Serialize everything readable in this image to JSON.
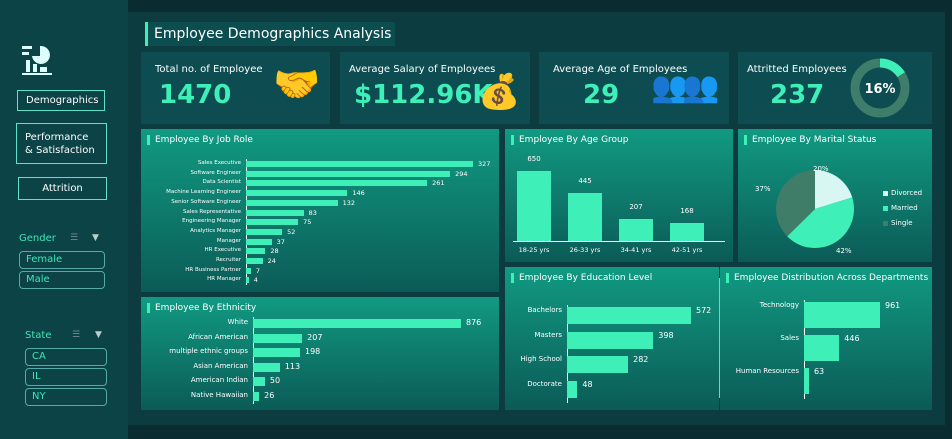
{
  "title": "Employee Demographics Analysis",
  "nav": {
    "demographics": "Demographics",
    "performance_line1": "Performance",
    "performance_line2": "& Satisfaction",
    "attrition": "Attrition"
  },
  "slicers": {
    "gender": {
      "title": "Gender",
      "items": [
        "Female",
        "Male"
      ]
    },
    "state": {
      "title": "State",
      "items": [
        "CA",
        "IL",
        "NY"
      ]
    }
  },
  "kpis": {
    "total": {
      "label": "Total no. of Employee",
      "value": "1470"
    },
    "salary": {
      "label": "Average Salary of Employees",
      "value": "$112.96K"
    },
    "age": {
      "label": "Average Age of Employees",
      "value": "29"
    },
    "attrition": {
      "label": "Attritted Employees",
      "value": "237",
      "pct": "16%",
      "fraction": 0.16
    }
  },
  "colors": {
    "accent": "#3ef0b8",
    "divorced": "#d8f7f2",
    "married": "#3ef0b8",
    "single": "#3f7d68"
  },
  "chart_data": [
    {
      "type": "bar",
      "orientation": "horizontal",
      "title": "Employee By Job Role",
      "categories": [
        "Sales Executive",
        "Software Engineer",
        "Data Scientist",
        "Machine Learning Engineer",
        "Senior Software Engineer",
        "Sales Representative",
        "Engineering Manager",
        "Analytics Manager",
        "Manager",
        "HR Executive",
        "Recruiter",
        "HR Business Partner",
        "HR Manager"
      ],
      "values": [
        327,
        294,
        261,
        146,
        132,
        83,
        75,
        52,
        37,
        28,
        24,
        7,
        4
      ]
    },
    {
      "type": "bar",
      "orientation": "horizontal",
      "title": "Employee By Ethnicity",
      "categories": [
        "White",
        "African American",
        "multiple ethnic groups",
        "Asian American",
        "American Indian",
        "Native Hawaiian"
      ],
      "values": [
        876,
        207,
        198,
        113,
        50,
        26
      ]
    },
    {
      "type": "bar",
      "orientation": "vertical",
      "title": "Employee By Age Group",
      "categories": [
        "18-25 yrs",
        "26-33 yrs",
        "34-41 yrs",
        "42-51 yrs"
      ],
      "values": [
        650,
        445,
        207,
        168
      ]
    },
    {
      "type": "pie",
      "title": "Employee By Marital Status",
      "categories": [
        "Divorced",
        "Married",
        "Single"
      ],
      "values": [
        20,
        42,
        37
      ],
      "labels": [
        "20%",
        "42%",
        "37%"
      ],
      "legend": "right"
    },
    {
      "type": "bar",
      "orientation": "horizontal",
      "title": "Employee By Education Level",
      "categories": [
        "Bachelors",
        "Masters",
        "High School",
        "Doctorate"
      ],
      "values": [
        572,
        398,
        282,
        48
      ]
    },
    {
      "type": "bar",
      "orientation": "horizontal",
      "title": "Employee Distribution Across Departments",
      "categories": [
        "Technology",
        "Sales",
        "Human Resources"
      ],
      "values": [
        961,
        446,
        63
      ]
    }
  ]
}
